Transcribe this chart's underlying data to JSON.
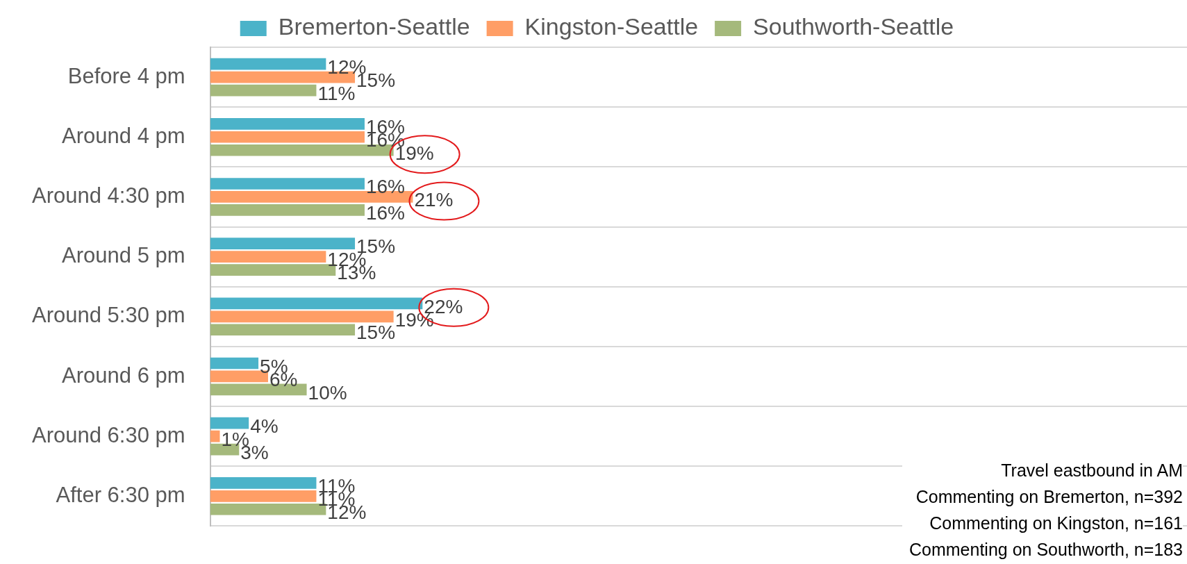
{
  "chart_data": {
    "type": "bar",
    "orientation": "horizontal",
    "categories": [
      "Before 4 pm",
      "Around 4 pm",
      "Around 4:30 pm",
      "Around 5 pm",
      "Around 5:30 pm",
      "Around 6 pm",
      "Around 6:30 pm",
      "After 6:30 pm"
    ],
    "series": [
      {
        "name": "Bremerton-Seattle",
        "color": "#4bb3c9",
        "values": [
          12,
          16,
          16,
          15,
          22,
          5,
          4,
          11
        ],
        "value_labels": [
          "12%",
          "16%",
          "16%",
          "15%",
          "22%",
          "5%",
          "4%",
          "11%"
        ]
      },
      {
        "name": "Kingston-Seattle",
        "color": "#ff9e66",
        "values": [
          15,
          16,
          21,
          12,
          19,
          6,
          1,
          11
        ],
        "value_labels": [
          "15%",
          "16%",
          "21%",
          "12%",
          "19%",
          "6%",
          "1%",
          "11%"
        ]
      },
      {
        "name": "Southworth-Seattle",
        "color": "#a5b97c",
        "values": [
          11,
          19,
          16,
          13,
          15,
          10,
          3,
          12
        ],
        "value_labels": [
          "11%",
          "19%",
          "16%",
          "13%",
          "15%",
          "10%",
          "3%",
          "12%"
        ]
      }
    ],
    "tick_labels": "y",
    "grid": "y",
    "legend": "top",
    "annotations": [
      "Travel eastbound in AM",
      "Commenting on Bremerton, n=392",
      "Commenting on Kingston, n=161",
      "Commenting on Southworth, n=183"
    ]
  }
}
